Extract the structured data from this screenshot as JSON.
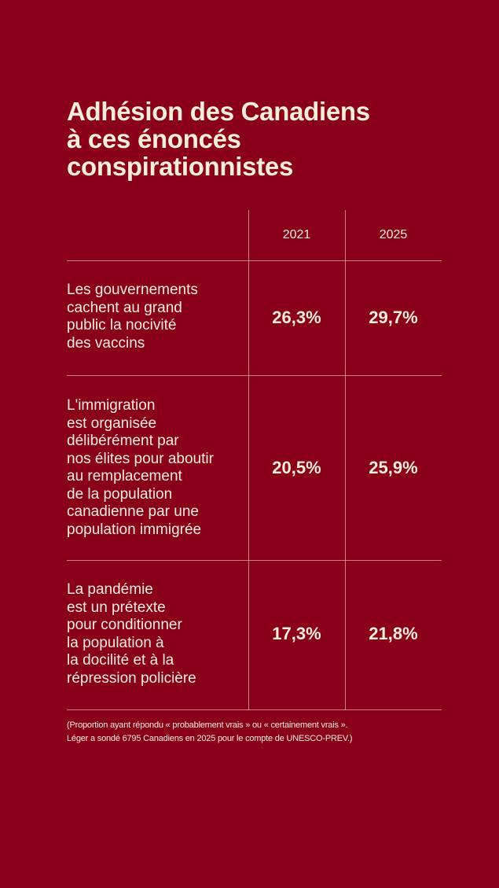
{
  "title": "Adhésion des Canadiens\nà ces énoncés\nconspirationnistes",
  "columns": [
    "2021",
    "2025"
  ],
  "rows": [
    {
      "statement": "Les gouvernements\ncachent au grand\npublic la nocivité\ndes vaccins",
      "v2021": "26,3%",
      "v2025": "29,7%"
    },
    {
      "statement": "L'immigration\nest organisée\ndélibérément par\nnos élites pour aboutir\nau remplacement\nde la population\ncanadienne par une\npopulation immigrée",
      "v2021": "20,5%",
      "v2025": "25,9%"
    },
    {
      "statement": "La pandémie\nest un prétexte\npour conditionner\nla population à\nla docilité et à la\nrépression policière",
      "v2021": "17,3%",
      "v2025": "21,8%"
    }
  ],
  "note": "(Proportion ayant répondu « probablement vrais » ou « certainement vrais ».\nLéger a sondé 6795 Canadiens en 2025 pour le compte de UNESCO-PREV.)",
  "colors": {
    "background": "#8a001a",
    "text": "#f6efd6"
  }
}
